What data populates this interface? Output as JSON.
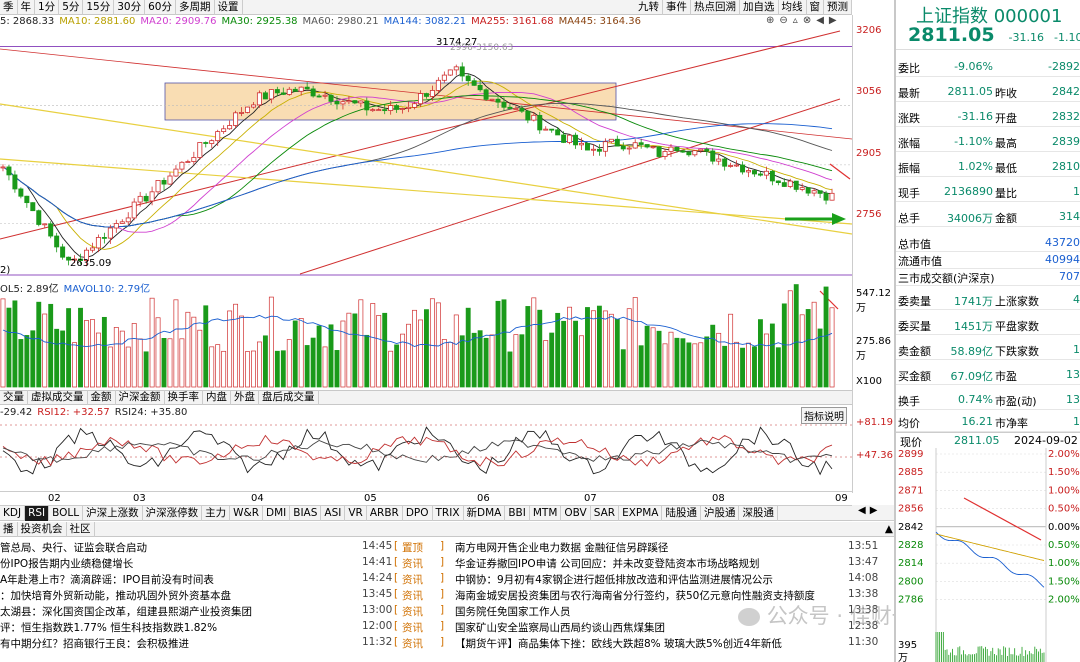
{
  "top_toolbar": {
    "left": [
      "季",
      "年",
      "1分",
      "5分",
      "15分",
      "30分",
      "60分",
      "多周期",
      "设置"
    ],
    "right": [
      "九转",
      "事件",
      "热点回溯",
      "加自选",
      "均线",
      "窗",
      "预测"
    ]
  },
  "ma_legend": [
    {
      "text": "5: 2868.33",
      "color": "#222222"
    },
    {
      "text": "MA10: 2881.60",
      "color": "#b8a000"
    },
    {
      "text": "MA20: 2909.76",
      "color": "#d040d0"
    },
    {
      "text": "MA30: 2925.38",
      "color": "#0a8a0a"
    },
    {
      "text": "MA60: 2980.21",
      "color": "#555555"
    },
    {
      "text": "MA144: 3082.21",
      "color": "#1a5fd0"
    },
    {
      "text": "MA255: 3161.68",
      "color": "#c81e1e"
    },
    {
      "text": "MA445: 3164.36",
      "color": "#8b4513"
    }
  ],
  "price_axis": [
    "3206",
    "3056",
    "2905",
    "2756"
  ],
  "price_annotations": {
    "high": "3174.27",
    "low": "2635.09",
    "mid_label": "2996-3150.63",
    "left_marker": "2)"
  },
  "volume": {
    "legend_vol": "OL5: 2.89亿",
    "legend_mavol": "MAVOL10: 2.79亿",
    "axis": [
      "547.12万",
      "275.86万",
      "X100"
    ]
  },
  "sub_tabs": [
    "交量",
    "虚拟成交量",
    "金额",
    "沪深金额",
    "换手率",
    "内盘",
    "外盘",
    "盘后成交量"
  ],
  "rsi": {
    "legend": [
      "-29.42",
      "RSI12: +32.57",
      "RSI24: +35.80"
    ],
    "axis": [
      "+81.19",
      "+47.36"
    ],
    "help": "指标说明"
  },
  "month_labels": [
    "02",
    "03",
    "04",
    "05",
    "06",
    "07",
    "08",
    "09"
  ],
  "indicator_tabs": [
    "KDJ",
    "RSI",
    "BOLL",
    "沪深上涨数",
    "沪深涨停数",
    "主力",
    "W&R",
    "DMI",
    "BIAS",
    "ASI",
    "VR",
    "ARBR",
    "DPO",
    "TRIX",
    "新DMA",
    "BBI",
    "MTM",
    "OBV",
    "SAR",
    "EXPMA",
    "陆股通",
    "沪股通",
    "深股通"
  ],
  "news_tabs": [
    "播",
    "投资机会",
    "社区"
  ],
  "news": [
    {
      "l": "管总局、央行、证监会联合启动",
      "lt": "14:45",
      "tag": "置顶",
      "r": "南方电网开售企业电力数据 金融征信另辟蹊径",
      "rt": "13:51"
    },
    {
      "l": "份IPO报告期内业绩稳健增长",
      "lt": "14:41",
      "tag": "资讯",
      "r": "华金证券撤回IPO申请 公司回应：并未改变登陆资本市场战略规划",
      "rt": "13:47"
    },
    {
      "l": "A年赴港上市？滴滴辟谣：IPO目前没有时间表",
      "lt": "14:24",
      "tag": "资讯",
      "r": "中钢协：9月初有4家钢企进行超低排放改造和评估监测进展情况公示",
      "rt": "14:08"
    },
    {
      "l": "：加快培育外贸新动能，推动巩固外贸外资基本盘",
      "lt": "13:45",
      "tag": "资讯",
      "r": "海南金城安居投资集团与农行海南省分行签约，获50亿元意向性融资支持额度",
      "rt": "13:38"
    },
    {
      "l": "太湖县：深化国资国企改革，组建县熙湖产业投资集团",
      "lt": "13:00",
      "tag": "资讯",
      "r": "国务院任免国家工作人员",
      "rt": "13:38"
    },
    {
      "l": "评：恒生指数跌1.77% 恒生科技指数跌1.82%",
      "lt": "12:00",
      "tag": "资讯",
      "r": "国家矿山安全监察局山西局约谈山西焦煤集团",
      "rt": "12:38"
    },
    {
      "l": "有中期分红？招商银行王良：会积极推进",
      "lt": "11:32",
      "tag": "资讯",
      "r": "【期货午评】商品集体下挫：欧线大跌超8% 玻璃大跌5%创近4年新低",
      "rt": "11:30"
    }
  ],
  "quote": {
    "name": "上证指数 000001",
    "price": "2811.05",
    "change": "-31.16",
    "pct": "-1.10%",
    "rows": [
      {
        "a": "委比",
        "av": "-9.06%",
        "b": "",
        "bv": "-2892"
      },
      {
        "a": "最新",
        "av": "2811.05",
        "b": "昨收",
        "bv": "2842"
      },
      {
        "a": "涨跌",
        "av": "-31.16",
        "b": "开盘",
        "bv": "2832"
      },
      {
        "a": "涨幅",
        "av": "-1.10%",
        "b": "最高",
        "bv": "2839"
      },
      {
        "a": "振幅",
        "av": "1.02%",
        "b": "最低",
        "bv": "2810"
      },
      {
        "a": "现手",
        "av": "2136890",
        "b": "量比",
        "bv": "1"
      },
      {
        "a": "总手",
        "av": "34006万",
        "b": "金额",
        "bv": "314"
      }
    ],
    "mkt_rows": [
      {
        "a": "总市值",
        "v": "43720"
      },
      {
        "a": "流通市值",
        "v": "40994"
      },
      {
        "a": "三市成交额(沪深京)",
        "v": "707"
      }
    ],
    "order_rows": [
      {
        "a": "委卖量",
        "av": "1741万",
        "b": "上涨家数",
        "bv": "4"
      },
      {
        "a": "委买量",
        "av": "1451万",
        "b": "平盘家数",
        "bv": ""
      },
      {
        "a": "卖金额",
        "av": "58.89亿",
        "b": "下跌家数",
        "bv": "1"
      },
      {
        "a": "买金额",
        "av": "67.09亿",
        "b": "市盈",
        "bv": "13"
      },
      {
        "a": "换手",
        "av": "0.74%",
        "b": "市盈(动)",
        "bv": "13"
      },
      {
        "a": "均价",
        "av": "16.21",
        "b": "市净率",
        "bv": "1"
      }
    ]
  },
  "intraday": {
    "title": "现价",
    "price": "2811.05",
    "date": "2024-09-02",
    "axis": [
      "2899",
      "2885",
      "2871",
      "2856",
      "2842",
      "2828",
      "2814",
      "2800",
      "2786"
    ],
    "pct_axis": [
      "2.00%",
      "1.50%",
      "1.00%",
      "0.50%",
      "0.00%",
      "0.50%",
      "1.00%",
      "1.50%",
      "2.00%"
    ],
    "vol_axis": [
      "395",
      "万"
    ]
  },
  "watermark": "公众号 · 佳财一分钟"
}
